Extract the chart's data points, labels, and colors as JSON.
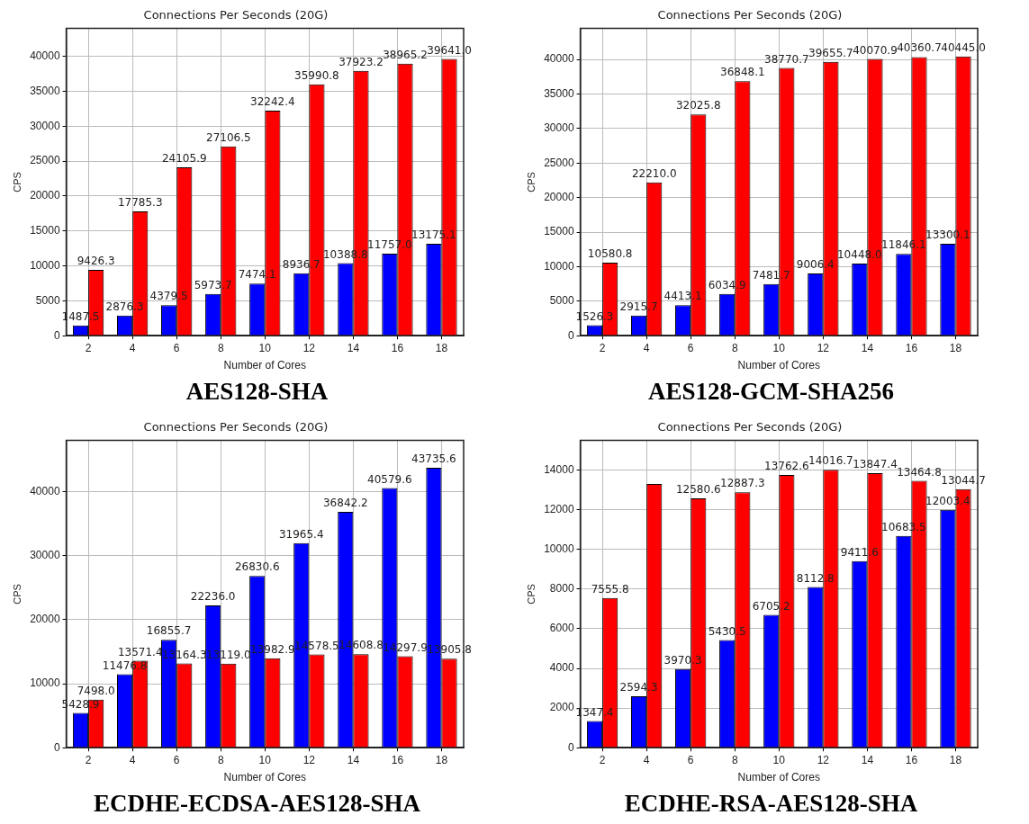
{
  "chart_data": [
    {
      "type": "bar",
      "title": "Connections Per Seconds (20G)",
      "subtitle": "AES128-SHA",
      "xlabel": "Number of Cores",
      "ylabel": "CPS",
      "categories": [
        "2",
        "4",
        "6",
        "8",
        "10",
        "12",
        "14",
        "16",
        "18"
      ],
      "series": [
        {
          "color": "#0000ff",
          "values": [
            1487.5,
            2876.3,
            4379.5,
            5973.7,
            7474.1,
            8936.7,
            10388.8,
            11757.0,
            13175.1
          ],
          "value_labels": [
            "1487.5",
            "2876.3",
            "4379.5",
            "5973.7",
            "7474.1",
            "8936.7",
            "10388.8",
            "11757.0",
            "13175.1"
          ]
        },
        {
          "color": "#ff0000",
          "values": [
            9426.3,
            17785.3,
            24105.9,
            27106.5,
            32242.4,
            35990.8,
            37923.2,
            38965.2,
            39641.0
          ],
          "value_labels": [
            "9426.3",
            "17785.3",
            "24105.9",
            "27106.5",
            "32242.4",
            "35990.8",
            "37923.2",
            "38965.2",
            "39641.0"
          ]
        }
      ],
      "ylim": [
        0,
        44000
      ],
      "yticks": [
        0,
        5000,
        10000,
        15000,
        20000,
        25000,
        30000,
        35000,
        40000
      ],
      "grid": true,
      "legend": false
    },
    {
      "type": "bar",
      "title": "Connections Per Seconds (20G)",
      "subtitle": "AES128-GCM-SHA256",
      "xlabel": "Number of Cores",
      "ylabel": "CPS",
      "categories": [
        "2",
        "4",
        "6",
        "8",
        "10",
        "12",
        "14",
        "16",
        "18"
      ],
      "series": [
        {
          "color": "#0000ff",
          "values": [
            1526.3,
            2915.7,
            4413.1,
            6034.9,
            7481.7,
            9006.4,
            10448.0,
            11846.1,
            13300.1
          ],
          "value_labels": [
            "1526.3",
            "2915.7",
            "4413.1",
            "6034.9",
            "7481.7",
            "9006.4",
            "10448.0",
            "11846.1",
            "13300.1"
          ]
        },
        {
          "color": "#ff0000",
          "values": [
            10580.8,
            22210.0,
            32025.8,
            36848.1,
            38770.7,
            39655.7,
            40070.9,
            40360.7,
            40445.0
          ],
          "value_labels": [
            "10580.8",
            "22210.0",
            "32025.8",
            "36848.1",
            "38770.7",
            "39655.7",
            "40070.9",
            "40360.7",
            "40445.0"
          ]
        }
      ],
      "ylim": [
        0,
        44500
      ],
      "yticks": [
        0,
        5000,
        10000,
        15000,
        20000,
        25000,
        30000,
        35000,
        40000
      ],
      "grid": true,
      "legend": false
    },
    {
      "type": "bar",
      "title": "Connections Per Seconds (20G)",
      "subtitle": "ECDHE-ECDSA-AES128-SHA",
      "xlabel": "Number of Cores",
      "ylabel": "CPS",
      "categories": [
        "2",
        "4",
        "6",
        "8",
        "10",
        "12",
        "14",
        "16",
        "18"
      ],
      "series": [
        {
          "color": "#0000ff",
          "values": [
            5428.9,
            11476.8,
            16855.7,
            22236.0,
            26830.6,
            31965.4,
            36842.2,
            40579.6,
            43735.6
          ],
          "value_labels": [
            "5428.9",
            "11476.8",
            "16855.7",
            "22236.0",
            "26830.6",
            "31965.4",
            "36842.2",
            "40579.6",
            "43735.6"
          ]
        },
        {
          "color": "#ff0000",
          "values": [
            7498.0,
            13571.4,
            13164.3,
            13119.0,
            13982.9,
            14578.5,
            14608.8,
            14297.9,
            13905.8
          ],
          "value_labels": [
            "7498.0",
            "13571.4",
            "13164.3",
            "13119.0",
            "13982.9",
            "14578.5",
            "14608.8",
            "14297.9",
            "13905.8"
          ]
        }
      ],
      "ylim": [
        0,
        48000
      ],
      "yticks": [
        0,
        10000,
        20000,
        30000,
        40000
      ],
      "grid": true,
      "legend": false
    },
    {
      "type": "bar",
      "title": "Connections Per Seconds (20G)",
      "subtitle": "ECDHE-RSA-AES128-SHA",
      "xlabel": "Number of Cores",
      "ylabel": "CPS",
      "categories": [
        "2",
        "4",
        "6",
        "8",
        "10",
        "12",
        "14",
        "16",
        "18"
      ],
      "series": [
        {
          "color": "#0000ff",
          "values": [
            1347.4,
            2594.3,
            3970.3,
            5430.5,
            6705.2,
            8112.8,
            9411.6,
            10683.5,
            12003.4
          ],
          "value_labels": [
            "1347.4",
            "2594.3",
            "3970.3",
            "5430.5",
            "6705.2",
            "8112.8",
            "9411.6",
            "10683.5",
            "12003.4"
          ]
        },
        {
          "color": "#ff0000",
          "values": [
            7555.8,
            13300,
            12580.6,
            12887.3,
            13762.6,
            14016.7,
            13847.4,
            13464.8,
            13044.7
          ],
          "value_labels": [
            "7555.8",
            null,
            "12580.6",
            "12887.3",
            "13762.6",
            "14016.7",
            "13847.4",
            "13464.8",
            "13044.7"
          ]
        }
      ],
      "ylim": [
        0,
        15500
      ],
      "yticks": [
        0,
        2000,
        4000,
        6000,
        8000,
        10000,
        12000,
        14000
      ],
      "grid": true,
      "legend": false
    }
  ]
}
